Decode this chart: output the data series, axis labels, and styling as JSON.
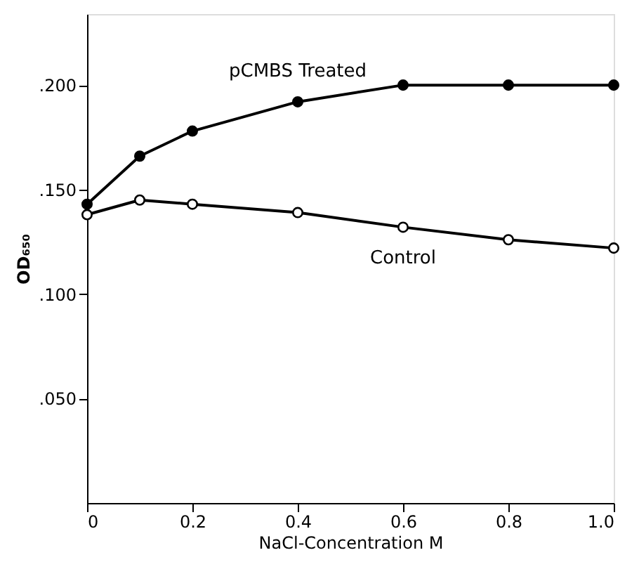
{
  "chart_data": {
    "type": "line",
    "xlabel": "NaCl-Concentration     M",
    "ylabel": "OD₆₅₀",
    "x": [
      0,
      0.1,
      0.2,
      0.4,
      0.6,
      0.8,
      1.0
    ],
    "series": [
      {
        "name": "pCMBS Treated",
        "color": "#000000",
        "values": [
          0.143,
          0.166,
          0.178,
          0.192,
          0.2,
          0.2,
          0.2
        ]
      },
      {
        "name": "Control",
        "color": "#000000",
        "values": [
          0.138,
          0.145,
          0.143,
          0.139,
          0.132,
          0.126,
          0.122
        ]
      }
    ],
    "xlim": [
      0,
      1.0
    ],
    "xticks": [
      0,
      0.2,
      0.4,
      0.6,
      0.8,
      {
        "value": 1.0,
        "label": "1.0"
      }
    ],
    "ylim": [
      0,
      0.234
    ],
    "yticks": [
      {
        "value": 0.05,
        "label": ".050"
      },
      {
        "value": 0.1,
        "label": ".100"
      },
      {
        "value": 0.15,
        "label": ".150"
      },
      {
        "value": 0.2,
        "label": ".200"
      }
    ],
    "grid": false,
    "marker": "circle",
    "line_style": "solid"
  }
}
